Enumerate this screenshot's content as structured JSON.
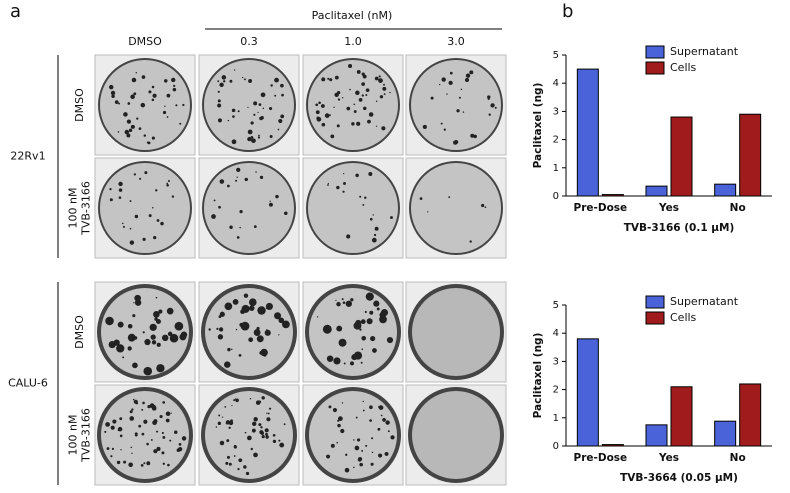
{
  "panel_a": {
    "label": "a",
    "treatment": "Paclitaxel (nM)",
    "columns": [
      "DMSO",
      "0.3",
      "1.0",
      "3.0"
    ],
    "cell_lines": [
      {
        "name": "22Rv1",
        "rows": [
          [
            "DMSO"
          ],
          [
            "100 nM",
            "TVB-3166"
          ]
        ]
      },
      {
        "name": "CALU-6",
        "rows": [
          [
            "DMSO"
          ],
          [
            "100 nM",
            "TVB-3166"
          ]
        ]
      }
    ]
  },
  "panel_b_label": "b",
  "chart_data": [
    {
      "type": "bar",
      "categories": [
        "Pre-Dose",
        "Yes",
        "No"
      ],
      "series": [
        {
          "name": "Supernatant",
          "color": "#4a63d8",
          "values": [
            4.5,
            0.35,
            0.42
          ]
        },
        {
          "name": "Cells",
          "color": "#a01c1c",
          "values": [
            0.05,
            2.8,
            2.9
          ]
        }
      ],
      "ylabel": "Paclitaxel (ng)",
      "xlabel": "TVB-3166 (0.1 µM)",
      "ylim": [
        0,
        5
      ],
      "yticks": [
        0,
        1,
        2,
        3,
        4,
        5
      ],
      "legend": "top-right"
    },
    {
      "type": "bar",
      "categories": [
        "Pre-Dose",
        "Yes",
        "No"
      ],
      "series": [
        {
          "name": "Supernatant",
          "color": "#4a63d8",
          "values": [
            3.8,
            0.75,
            0.88
          ]
        },
        {
          "name": "Cells",
          "color": "#a01c1c",
          "values": [
            0.05,
            2.1,
            2.2
          ]
        }
      ],
      "ylabel": "Paclitaxel (ng)",
      "xlabel": "TVB-3664 (0.05 µM)",
      "ylim": [
        0,
        5
      ],
      "yticks": [
        0,
        1,
        2,
        3,
        4,
        5
      ],
      "legend": "top-right"
    }
  ]
}
